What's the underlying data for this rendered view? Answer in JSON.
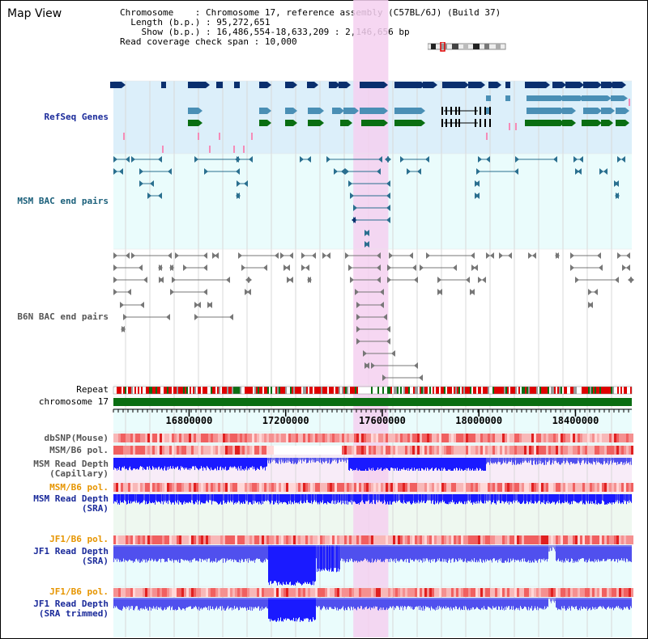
{
  "page": {
    "title": "Map View"
  },
  "info": {
    "chromosome_label": "Chromosome",
    "chromosome_value": "Chromosome 17, reference assembly (C57BL/6J) (Build 37)",
    "length_label": "Length (b.p.)",
    "length_value": "95,272,651",
    "show_label": "Show (b.p.)",
    "show_value": "16,486,554-18,633,209 : 2,146,656 bp",
    "coverage_label": "Read coverage check span",
    "coverage_value": "10,000"
  },
  "tracks": {
    "refseq": "RefSeq Genes",
    "msm_bac": "MSM BAC end pairs",
    "b6n_bac": "B6N BAC end pairs",
    "repeat": "Repeat",
    "chromosome": "chromosome 17",
    "dbsnp": "dbSNP(Mouse)",
    "msm_b6_pol": "MSM/B6 pol.",
    "msm_depth_cap_1": "MSM Read Depth",
    "msm_depth_cap_2": "(Capillary)",
    "msm_b6_pol_2": "MSM/B6 pol.",
    "msm_depth_sra_1": "MSM Read Depth",
    "msm_depth_sra_2": "(SRA)",
    "jf1_b6_pol": "JF1/B6 pol.",
    "jf1_depth_sra_1": "JF1 Read Depth",
    "jf1_depth_sra_2": "(SRA)",
    "jf1_b6_pol_2": "JF1/B6 pol.",
    "jf1_depth_trim_1": "JF1 Read Depth",
    "jf1_depth_trim_2": "(SRA trimmed)"
  },
  "axis": {
    "ticks": [
      {
        "label": "16800000",
        "pos": 16800000
      },
      {
        "label": "17200000",
        "pos": 17200000
      },
      {
        "label": "17600000",
        "pos": 17600000
      },
      {
        "label": "18000000",
        "pos": 18000000
      },
      {
        "label": "18400000",
        "pos": 18400000
      }
    ],
    "range_start": 16486554,
    "range_end": 18633209,
    "highlight_start": 17480000,
    "highlight_end": 17625000
  },
  "colors": {
    "refseq_bg": "#dceffa",
    "msm_bg": "#eafcfc",
    "highlight": "#f5d0f0",
    "navy": "#0a2f6e",
    "teal_gene": "#4a8fb5",
    "green_gene": "#0a6e12",
    "pink_gene": "#f58cb8",
    "bac_teal": "#2a6f8f",
    "bac_grey": "#777777",
    "chromosome_bar": "#0a6e12",
    "depth_blue": "#2222ff"
  }
}
